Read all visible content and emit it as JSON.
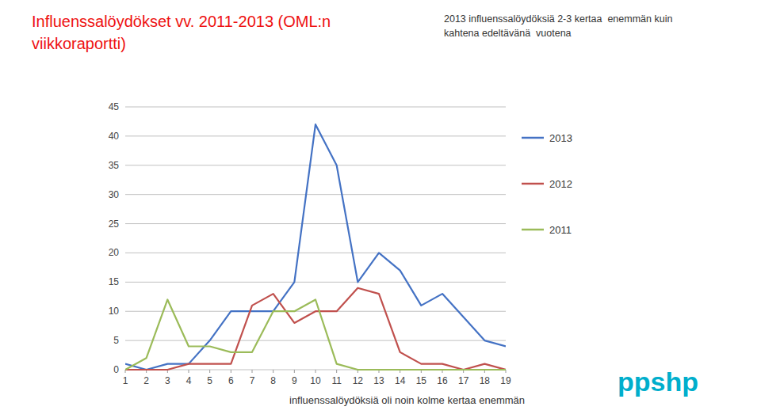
{
  "chart_data": {
    "type": "line",
    "title": [
      "Influenssalöydökset vv. 2011-2013 (OML:n",
      "viikkoraportti)"
    ],
    "subtitle": [
      "2013 influenssalöydöksiä 2-3 kertaa  enemmän kuin",
      "kahtena edeltävänä  vuotena"
    ],
    "annotations": [
      "influenssalöydöksiä oli noin kolme kertaa enemmän",
      "ppshp"
    ],
    "x": [
      1,
      2,
      3,
      4,
      5,
      6,
      7,
      8,
      9,
      10,
      11,
      12,
      13,
      14,
      15,
      16,
      17,
      18,
      19
    ],
    "series": [
      {
        "name": "2013",
        "color": "#4472C4",
        "values": [
          1,
          0,
          1,
          1,
          5,
          10,
          10,
          10,
          15,
          42,
          35,
          15,
          20,
          17,
          11,
          13,
          9,
          5,
          4
        ]
      },
      {
        "name": "2012",
        "color": "#C0504D",
        "values": [
          0,
          0,
          0,
          1,
          1,
          1,
          11,
          13,
          8,
          10,
          10,
          14,
          13,
          3,
          1,
          1,
          0,
          1,
          0
        ]
      },
      {
        "name": "2011",
        "color": "#9BBB59",
        "values": [
          0,
          2,
          12,
          4,
          4,
          3,
          3,
          10,
          10,
          12,
          1,
          0,
          0,
          0,
          0,
          0,
          0,
          0,
          0
        ]
      }
    ],
    "xlim": [
      1,
      19
    ],
    "xticks": [
      1,
      2,
      3,
      4,
      5,
      6,
      7,
      8,
      9,
      10,
      11,
      12,
      13,
      14,
      15,
      16,
      17,
      18,
      19
    ],
    "ylim": [
      0,
      45
    ],
    "yticks": [
      0,
      5,
      10,
      15,
      20,
      25,
      30,
      35,
      40,
      45
    ],
    "grid": true,
    "legend": "right"
  }
}
